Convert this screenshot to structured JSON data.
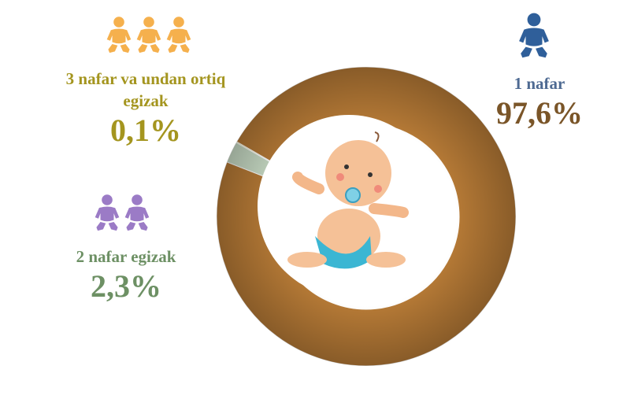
{
  "chart_data": {
    "type": "pie",
    "donut": true,
    "categories": [
      "1 nafar",
      "2 nafar egizak",
      "3 nafar va undan ortiq egizak"
    ],
    "values": [
      97.6,
      2.3,
      0.1
    ],
    "value_labels": [
      "97,6%",
      "2,3%",
      "0,1%"
    ],
    "colors": [
      "#b67a36",
      "#c9dcc6",
      "#f4e846"
    ]
  }
}
